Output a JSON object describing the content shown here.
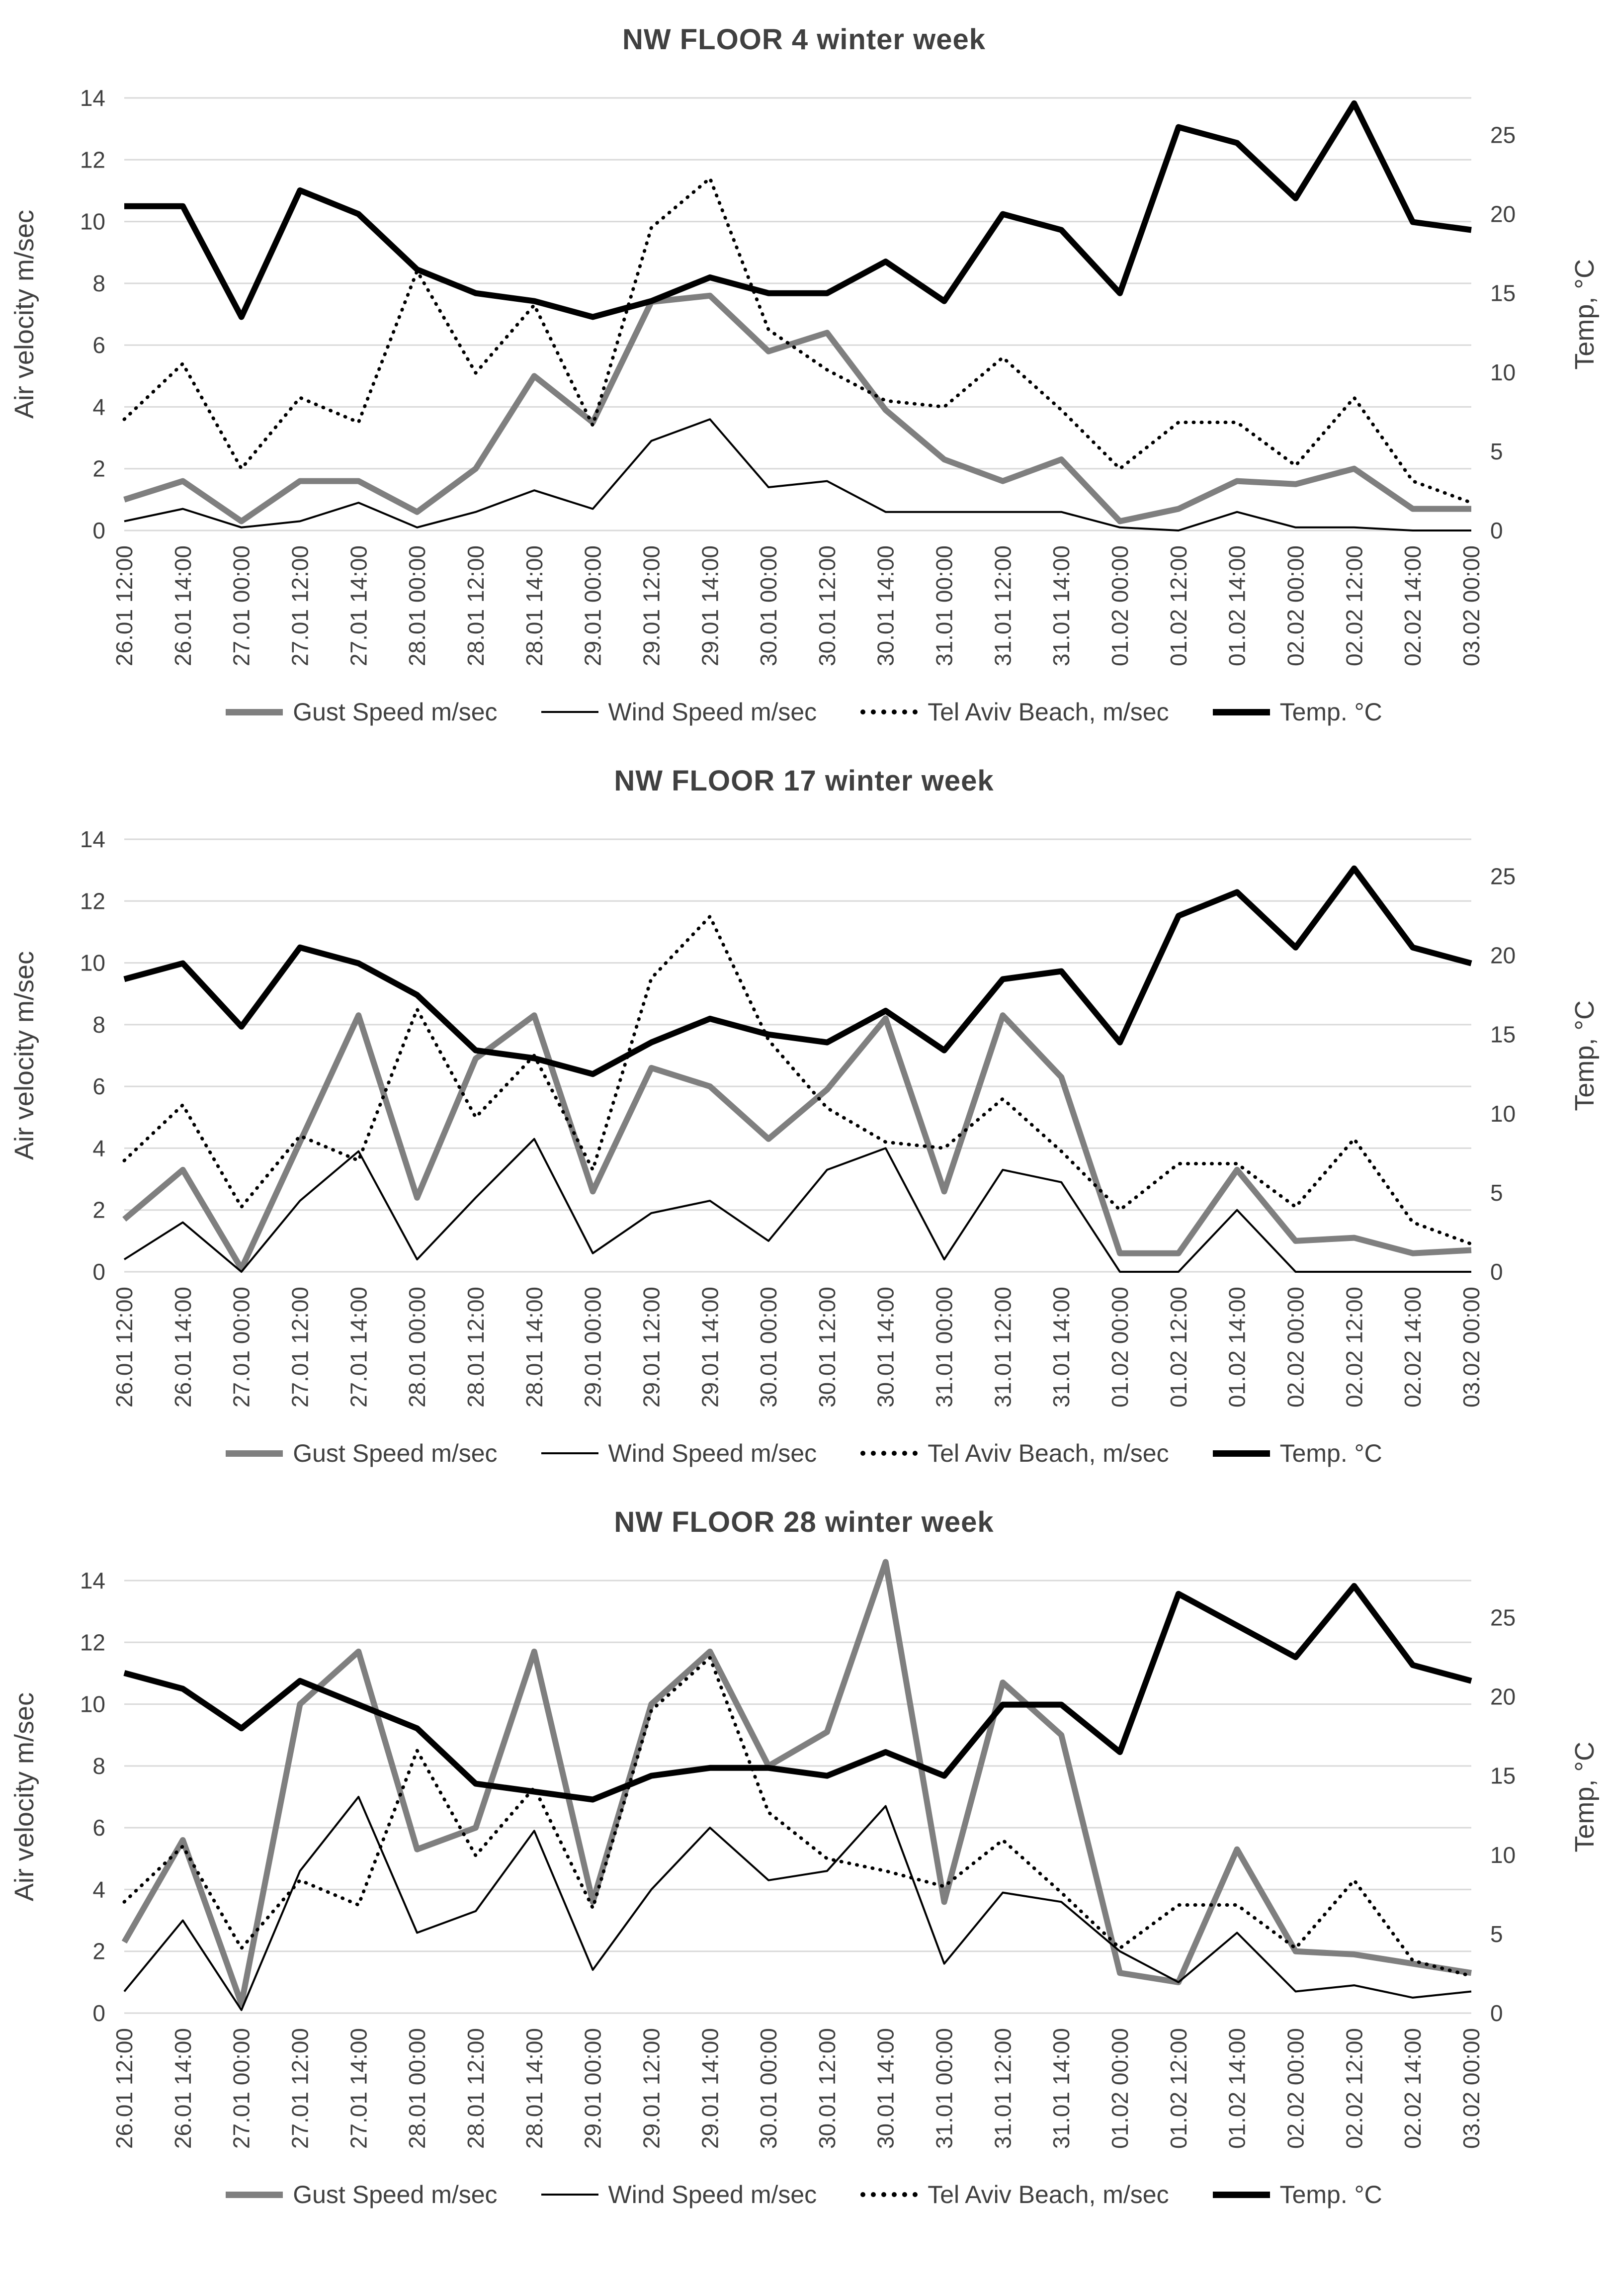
{
  "page": {
    "background": "#ffffff"
  },
  "axis": {
    "left_label": "Air velocity m/sec",
    "right_label": "Temp, °C",
    "left_ticks": [
      0,
      2,
      4,
      6,
      8,
      10,
      12,
      14
    ],
    "right_ticks": [
      0,
      5,
      10,
      15,
      20,
      25
    ]
  },
  "colors": {
    "gust": "#7f7f7f",
    "wind": "#000000",
    "beach": "#000000",
    "temp": "#000000",
    "grid": "#d9d9d9",
    "text": "#404040"
  },
  "legend": [
    {
      "key": "gust",
      "label": "Gust Speed m/sec"
    },
    {
      "key": "wind",
      "label": "Wind Speed m/sec"
    },
    {
      "key": "beach",
      "label": "Tel Aviv Beach, m/sec"
    },
    {
      "key": "temp",
      "label": "Temp. °C"
    }
  ],
  "chart_data": [
    {
      "type": "line",
      "title": "NW FLOOR 4 winter week",
      "ylabel": "Air velocity m/sec",
      "ylabel2": "Temp, °C",
      "ylim_left": [
        0,
        14
      ],
      "ylim_right": [
        0,
        25
      ],
      "grid": true,
      "legend_position": "bottom",
      "categories": [
        "26.01 12:00",
        "26.01 14:00",
        "27.01 00:00",
        "27.01 12:00",
        "27.01 14:00",
        "28.01 00:00",
        "28.01 12:00",
        "28.01 14:00",
        "29.01 00:00",
        "29.01 12:00",
        "29.01 14:00",
        "30.01 00:00",
        "30.01 12:00",
        "30.01 14:00",
        "31.01 00:00",
        "31.01 12:00",
        "31.01 14:00",
        "01.02 00:00",
        "01.02 12:00",
        "01.02 14:00",
        "02.02 00:00",
        "02.02 12:00",
        "02.02 14:00",
        "03.02 00:00"
      ],
      "series": [
        {
          "key": "gust",
          "name": "Gust Speed m/sec",
          "axis": "left",
          "values": [
            1.0,
            1.6,
            0.3,
            1.6,
            1.6,
            0.6,
            2.0,
            5.0,
            3.5,
            7.4,
            7.6,
            5.8,
            6.4,
            3.9,
            2.3,
            1.6,
            2.3,
            0.3,
            0.7,
            1.6,
            1.5,
            2.0,
            0.7,
            0.7
          ]
        },
        {
          "key": "wind",
          "name": "Wind Speed m/sec",
          "axis": "left",
          "values": [
            0.3,
            0.7,
            0.1,
            0.3,
            0.9,
            0.1,
            0.6,
            1.3,
            0.7,
            2.9,
            3.6,
            1.4,
            1.6,
            0.6,
            0.6,
            0.6,
            0.6,
            0.1,
            0.0,
            0.6,
            0.1,
            0.1,
            0.0,
            0.0
          ]
        },
        {
          "key": "beach",
          "name": "Tel Aviv Beach, m/sec",
          "axis": "left",
          "values": [
            3.6,
            5.4,
            2.0,
            4.3,
            3.5,
            8.4,
            5.1,
            7.3,
            3.4,
            9.8,
            11.4,
            6.5,
            5.2,
            4.2,
            4.0,
            5.6,
            3.9,
            2.0,
            3.5,
            3.5,
            2.1,
            4.3,
            1.6,
            0.9
          ]
        },
        {
          "key": "temp",
          "name": "Temp. °C",
          "axis": "right",
          "values": [
            20.5,
            20.5,
            13.5,
            21.5,
            20,
            16.5,
            15,
            14.5,
            13.5,
            14.5,
            16,
            15,
            15,
            17,
            14.5,
            20,
            19,
            15,
            25.5,
            24.5,
            21,
            27,
            19.5,
            19
          ]
        }
      ]
    },
    {
      "type": "line",
      "title": "NW FLOOR 17 winter week",
      "ylabel": "Air velocity m/sec",
      "ylabel2": "Temp, °C",
      "ylim_left": [
        0,
        14
      ],
      "ylim_right": [
        0,
        25
      ],
      "grid": true,
      "legend_position": "bottom",
      "categories": [
        "26.01 12:00",
        "26.01 14:00",
        "27.01 00:00",
        "27.01 12:00",
        "27.01 14:00",
        "28.01 00:00",
        "28.01 12:00",
        "28.01 14:00",
        "29.01 00:00",
        "29.01 12:00",
        "29.01 14:00",
        "30.01 00:00",
        "30.01 12:00",
        "30.01 14:00",
        "31.01 00:00",
        "31.01 12:00",
        "31.01 14:00",
        "01.02 00:00",
        "01.02 12:00",
        "01.02 14:00",
        "02.02 00:00",
        "02.02 12:00",
        "02.02 14:00",
        "03.02 00:00"
      ],
      "series": [
        {
          "key": "gust",
          "name": "Gust Speed m/sec",
          "axis": "left",
          "values": [
            1.7,
            3.3,
            0.1,
            4.2,
            8.3,
            2.4,
            6.9,
            8.3,
            2.6,
            6.6,
            6.0,
            4.3,
            5.9,
            8.2,
            2.6,
            8.3,
            6.3,
            0.6,
            0.6,
            3.3,
            1.0,
            1.1,
            0.6,
            0.7
          ]
        },
        {
          "key": "wind",
          "name": "Wind Speed m/sec",
          "axis": "left",
          "values": [
            0.4,
            1.6,
            0.0,
            2.3,
            3.9,
            0.4,
            2.4,
            4.3,
            0.6,
            1.9,
            2.3,
            1.0,
            3.3,
            4.0,
            0.4,
            3.3,
            2.9,
            0.0,
            0.0,
            2.0,
            0.0,
            0.0,
            0.0,
            0.0
          ]
        },
        {
          "key": "beach",
          "name": "Tel Aviv Beach, m/sec",
          "axis": "left",
          "values": [
            3.6,
            5.4,
            2.1,
            4.4,
            3.6,
            8.5,
            5.0,
            7.0,
            3.3,
            9.5,
            11.5,
            7.5,
            5.3,
            4.2,
            4.0,
            5.6,
            3.9,
            2.0,
            3.5,
            3.5,
            2.1,
            4.3,
            1.6,
            0.9
          ]
        },
        {
          "key": "temp",
          "name": "Temp. °C",
          "axis": "right",
          "values": [
            18.5,
            19.5,
            15.5,
            20.5,
            19.5,
            17.5,
            14,
            13.5,
            12.5,
            14.5,
            16,
            15,
            14.5,
            16.5,
            14,
            18.5,
            19,
            14.5,
            22.5,
            24,
            20.5,
            25.5,
            20.5,
            19.5
          ]
        }
      ]
    },
    {
      "type": "line",
      "title": "NW FLOOR 28 winter week",
      "ylabel": "Air velocity m/sec",
      "ylabel2": "Temp, °C",
      "ylim_left": [
        0,
        14
      ],
      "ylim_right": [
        0,
        25
      ],
      "grid": true,
      "legend_position": "bottom",
      "categories": [
        "26.01 12:00",
        "26.01 14:00",
        "27.01 00:00",
        "27.01 12:00",
        "27.01 14:00",
        "28.01 00:00",
        "28.01 12:00",
        "28.01 14:00",
        "29.01 00:00",
        "29.01 12:00",
        "29.01 14:00",
        "30.01 00:00",
        "30.01 12:00",
        "30.01 14:00",
        "31.01 00:00",
        "31.01 12:00",
        "31.01 14:00",
        "01.02 00:00",
        "01.02 12:00",
        "01.02 14:00",
        "02.02 00:00",
        "02.02 12:00",
        "02.02 14:00",
        "03.02 00:00"
      ],
      "series": [
        {
          "key": "gust",
          "name": "Gust Speed m/sec",
          "axis": "left",
          "values": [
            2.3,
            5.6,
            0.3,
            10.0,
            11.7,
            5.3,
            6.0,
            11.7,
            3.6,
            10.0,
            11.7,
            8.0,
            9.1,
            14.6,
            3.6,
            10.7,
            9.0,
            1.3,
            1.0,
            5.3,
            2.0,
            1.9,
            1.6,
            1.3
          ]
        },
        {
          "key": "wind",
          "name": "Wind Speed m/sec",
          "axis": "left",
          "values": [
            0.7,
            3.0,
            0.1,
            4.6,
            7.0,
            2.6,
            3.3,
            5.9,
            1.4,
            4.0,
            6.0,
            4.3,
            4.6,
            6.7,
            1.6,
            3.9,
            3.6,
            2.0,
            1.0,
            2.6,
            0.7,
            0.9,
            0.5,
            0.7
          ]
        },
        {
          "key": "beach",
          "name": "Tel Aviv Beach, m/sec",
          "axis": "left",
          "values": [
            3.6,
            5.4,
            2.1,
            4.3,
            3.5,
            8.5,
            5.1,
            7.3,
            3.4,
            9.8,
            11.5,
            6.5,
            5.0,
            4.6,
            4.1,
            5.6,
            3.9,
            2.1,
            3.5,
            3.5,
            2.1,
            4.3,
            1.7,
            1.2
          ]
        },
        {
          "key": "temp",
          "name": "Temp. °C",
          "axis": "right",
          "values": [
            21.5,
            20.5,
            18,
            21,
            19.5,
            18,
            14.5,
            14,
            13.5,
            15,
            15.5,
            15.5,
            15,
            16.5,
            15,
            19.5,
            19.5,
            16.5,
            26.5,
            24.5,
            22.5,
            27,
            22,
            21
          ]
        }
      ]
    }
  ]
}
